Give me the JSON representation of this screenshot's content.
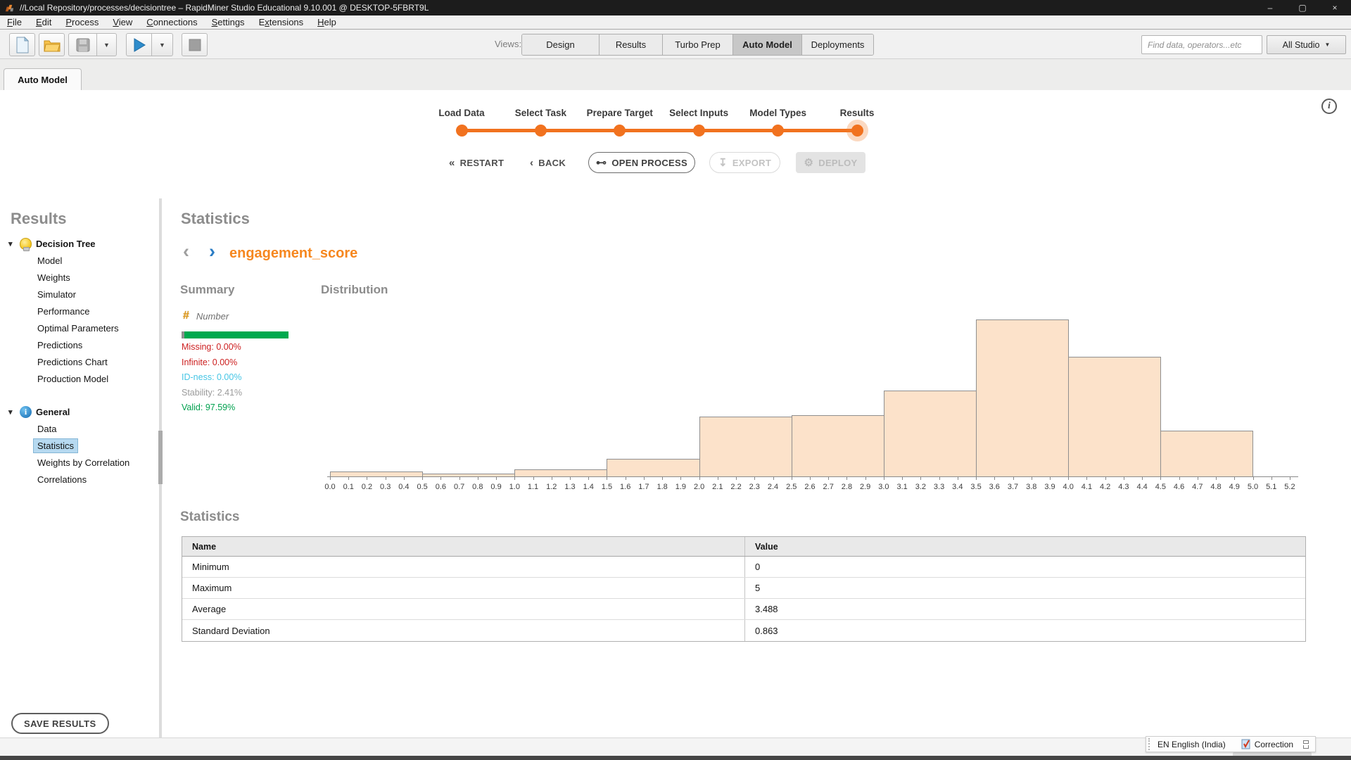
{
  "window": {
    "title": "//Local Repository/processes/decisiontree – RapidMiner Studio Educational 9.10.001 @ DESKTOP-5FBRT9L"
  },
  "icons": {
    "minimize": "–",
    "maximize": "▢",
    "close": "×",
    "dropdown": "▼",
    "tree_expand": "▾",
    "prev_chevron": "‹",
    "next_chevron": "›",
    "restart": "«",
    "back": "‹",
    "open_process": "⊷",
    "export": "↧",
    "deploy_gear": "⚙",
    "info": "i"
  },
  "menu": {
    "items": [
      {
        "label": "File",
        "mnemonic": 0
      },
      {
        "label": "Edit",
        "mnemonic": 0
      },
      {
        "label": "Process",
        "mnemonic": 0
      },
      {
        "label": "View",
        "mnemonic": 0
      },
      {
        "label": "Connections",
        "mnemonic": 0
      },
      {
        "label": "Settings",
        "mnemonic": 0
      },
      {
        "label": "Extensions",
        "mnemonic": 1
      },
      {
        "label": "Help",
        "mnemonic": 0
      }
    ]
  },
  "toolbar": {
    "views_label": "Views:",
    "views": [
      "Design",
      "Results",
      "Turbo Prep",
      "Auto Model",
      "Deployments"
    ],
    "active_view": "Auto Model",
    "search_placeholder": "Find data, operators...etc",
    "scope_dropdown": "All Studio"
  },
  "tab": {
    "label": "Auto Model"
  },
  "wizard": {
    "steps": [
      "Load Data",
      "Select Task",
      "Prepare Target",
      "Select Inputs",
      "Model Types",
      "Results"
    ],
    "current_step": "Results",
    "buttons": [
      {
        "label": "RESTART",
        "icon": "restart",
        "style": "plain",
        "enabled": true
      },
      {
        "label": "BACK",
        "icon": "back",
        "style": "plain",
        "enabled": true
      },
      {
        "label": "OPEN PROCESS",
        "icon": "open_process",
        "style": "outline",
        "enabled": true
      },
      {
        "label": "EXPORT",
        "icon": "export",
        "style": "outline",
        "enabled": false
      },
      {
        "label": "DEPLOY",
        "icon": "deploy_gear",
        "style": "filled",
        "enabled": false
      }
    ]
  },
  "sidebar": {
    "title": "Results",
    "groups": [
      {
        "label": "Decision Tree",
        "icon": "lightbulb-icon",
        "items": [
          "Model",
          "Weights",
          "Simulator",
          "Performance",
          "Optimal Parameters",
          "Predictions",
          "Predictions Chart",
          "Production Model"
        ]
      },
      {
        "label": "General",
        "icon": "info-icon",
        "items": [
          "Data",
          "Statistics",
          "Weights by Correlation",
          "Correlations"
        ]
      }
    ],
    "selected_item": "Statistics",
    "save_button": "SAVE RESULTS"
  },
  "main": {
    "title": "Statistics",
    "attribute_nav": {
      "attribute": "engagement_score"
    },
    "summary": {
      "heading": "Summary",
      "type_icon": "#",
      "type_label": "Number",
      "quality_bar": {
        "stability_color": "#8f8f8f",
        "valid_color": "#00a94f",
        "stability_pct": 2.41,
        "valid_pct": 97.59
      },
      "stats": [
        {
          "label": "Missing",
          "value": "0.00%",
          "color": "#cc1f1f"
        },
        {
          "label": "Infinite",
          "value": "0.00%",
          "color": "#cc1f1f"
        },
        {
          "label": "ID-ness",
          "value": "0.00%",
          "color": "#45c5e5"
        },
        {
          "label": "Stability",
          "value": "2.41%",
          "color": "#9b9b9b"
        },
        {
          "label": "Valid",
          "value": "97.59%",
          "color": "#00a14e"
        }
      ]
    },
    "distribution_heading": "Distribution",
    "statistics_section": {
      "heading": "Statistics",
      "columns": [
        "Name",
        "Value"
      ],
      "rows": [
        [
          "Minimum",
          "0"
        ],
        [
          "Maximum",
          "5"
        ],
        [
          "Average",
          "3.488"
        ],
        [
          "Standard Deviation",
          "0.863"
        ]
      ]
    }
  },
  "chart_data": {
    "type": "bar",
    "subtype": "histogram",
    "title": "Distribution",
    "xlabel": "engagement_score",
    "ylabel": "",
    "x_range": [
      0.0,
      5.25
    ],
    "grid": false,
    "legend": "none",
    "bar_fill": "#fce2ca",
    "bar_border": "#8f8f8f",
    "bins": [
      {
        "range": [
          0.0,
          0.5
        ],
        "rel_height": 0.031
      },
      {
        "range": [
          0.5,
          1.0
        ],
        "rel_height": 0.018
      },
      {
        "range": [
          1.0,
          1.5
        ],
        "rel_height": 0.045
      },
      {
        "range": [
          1.5,
          2.0
        ],
        "rel_height": 0.112
      },
      {
        "range": [
          2.0,
          2.5
        ],
        "rel_height": 0.381
      },
      {
        "range": [
          2.5,
          3.0
        ],
        "rel_height": 0.39
      },
      {
        "range": [
          3.0,
          3.5
        ],
        "rel_height": 0.547
      },
      {
        "range": [
          3.5,
          4.0
        ],
        "rel_height": 1.0
      },
      {
        "range": [
          4.0,
          4.5
        ],
        "rel_height": 0.762
      },
      {
        "range": [
          4.5,
          5.0
        ],
        "rel_height": 0.291
      }
    ],
    "x_ticks": [
      "0.0",
      "0.1",
      "0.2",
      "0.3",
      "0.4",
      "0.5",
      "0.6",
      "0.7",
      "0.8",
      "0.9",
      "1.0",
      "1.1",
      "1.2",
      "1.3",
      "1.4",
      "1.5",
      "1.6",
      "1.7",
      "1.8",
      "1.9",
      "2.0",
      "2.1",
      "2.2",
      "2.3",
      "2.4",
      "2.5",
      "2.6",
      "2.7",
      "2.8",
      "2.9",
      "3.0",
      "3.1",
      "3.2",
      "3.3",
      "3.4",
      "3.5",
      "3.6",
      "3.7",
      "3.8",
      "3.9",
      "4.0",
      "4.1",
      "4.2",
      "4.3",
      "4.4",
      "4.5",
      "4.6",
      "4.7",
      "4.8",
      "4.9",
      "5.0",
      "5.1",
      "5.2"
    ]
  },
  "statusbar": {
    "language": "EN English (India)",
    "correction": "Correction"
  }
}
